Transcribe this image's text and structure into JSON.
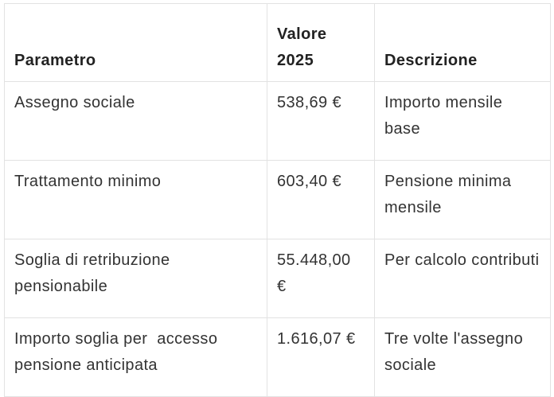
{
  "table": {
    "headers": [
      "Parametro",
      "Valore 2025",
      "Descrizione"
    ],
    "rows": [
      [
        "Assegno sociale",
        "538,69 €",
        "Importo mensile base"
      ],
      [
        "Trattamento minimo",
        "603,40 €",
        "Pensione minima mensile"
      ],
      [
        "Soglia di retribuzione pensionabile",
        "55.448,00 €",
        "Per calcolo contributi"
      ],
      [
        "Importo soglia per  accesso pensione anticipata",
        "1.616,07 €",
        "Tre volte l'assegno sociale"
      ]
    ]
  }
}
